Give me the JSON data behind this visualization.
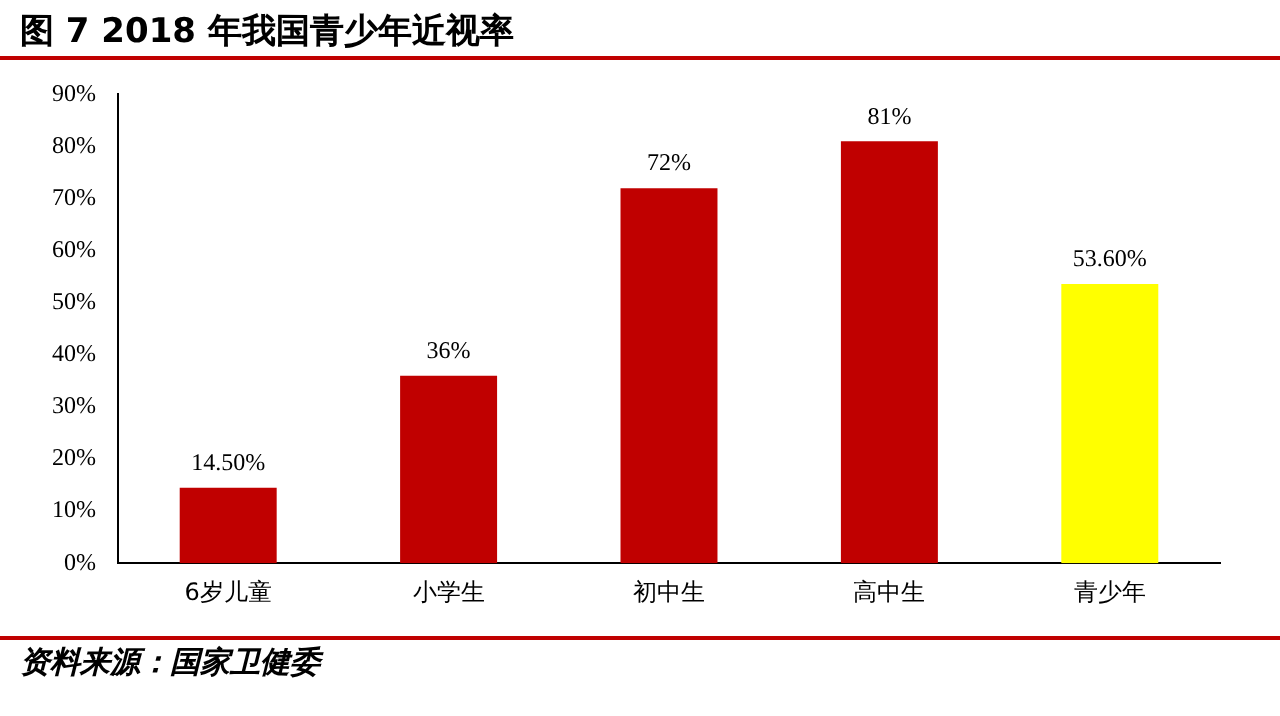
{
  "chart_data": {
    "type": "bar",
    "title": "图 7 2018 年我国青少年近视率",
    "categories": [
      "6岁儿童",
      "小学生",
      "初中生",
      "高中生",
      "青少年"
    ],
    "values": [
      14.5,
      36,
      72,
      81,
      53.6
    ],
    "colors": [
      "#c00000",
      "#c00000",
      "#c00000",
      "#c00000",
      "#ffff00"
    ],
    "value_labels": [
      "14.50%",
      "36%",
      "72%",
      "81%",
      "53.60%"
    ],
    "ylim": [
      0,
      90
    ],
    "yticks": [
      {
        "value": 0,
        "label": "0%"
      },
      {
        "value": 10,
        "label": "10%"
      },
      {
        "value": 20,
        "label": "20%"
      },
      {
        "value": 30,
        "label": "30%"
      },
      {
        "value": 40,
        "label": "40%"
      },
      {
        "value": 50,
        "label": "50%"
      },
      {
        "value": 60,
        "label": "60%"
      },
      {
        "value": 70,
        "label": "70%"
      },
      {
        "value": 80,
        "label": "80%"
      },
      {
        "value": 90,
        "label": "90%"
      }
    ],
    "grid": false,
    "legend": false,
    "annotations": [
      "资料来源：国家卫健委"
    ]
  }
}
